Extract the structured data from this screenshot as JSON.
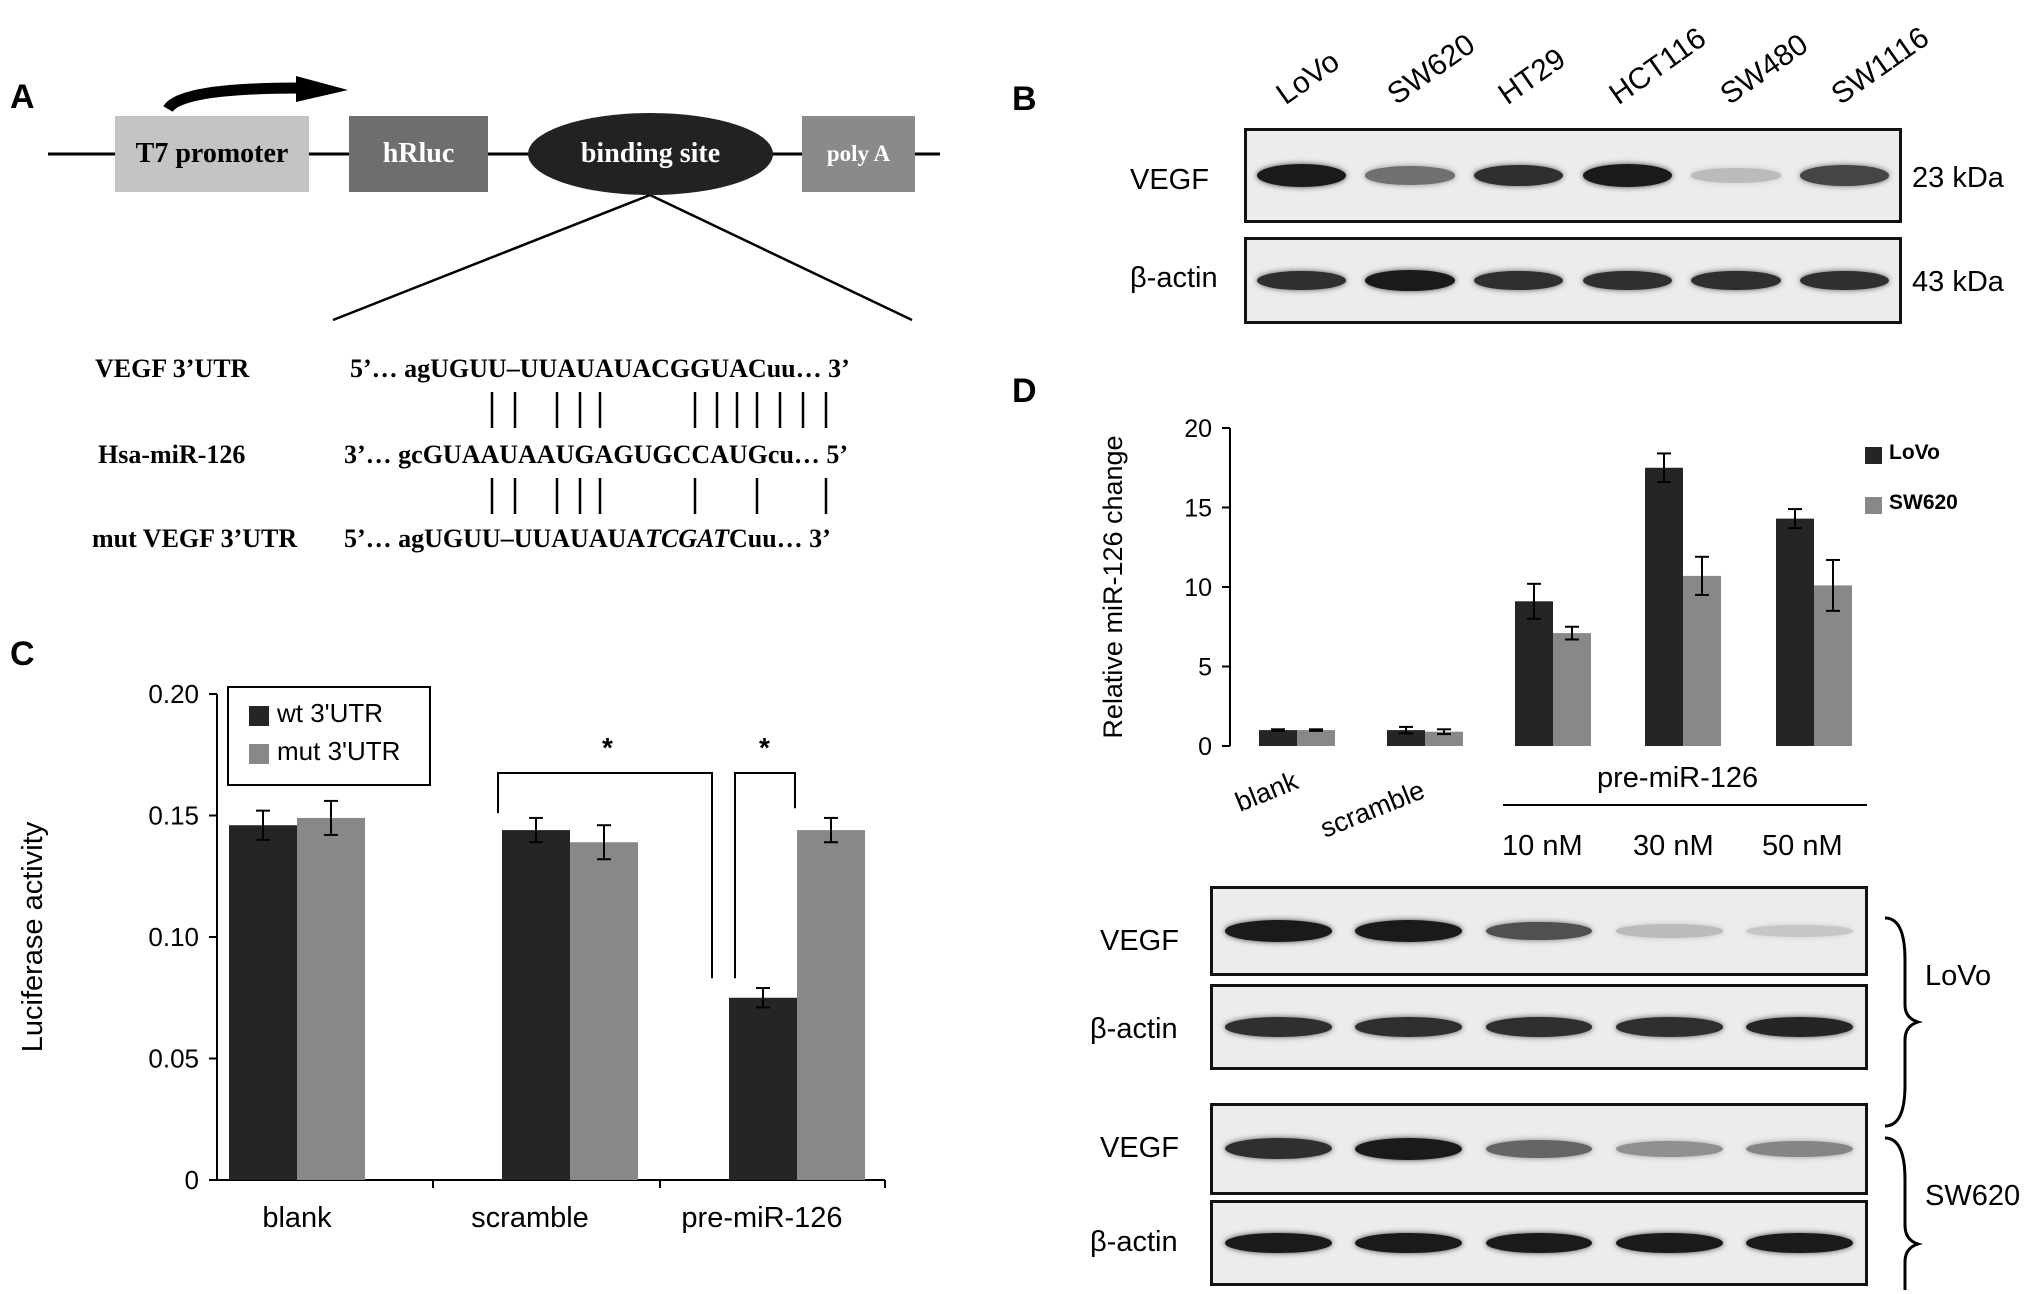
{
  "panels": {
    "A": {
      "letter": "A",
      "elements": [
        "T7 promoter",
        "hRluc",
        "binding site",
        "poly A"
      ],
      "rows": [
        {
          "name": "VEGF 3’UTR",
          "seq": "5’… agUGUU–UUAUAUACGGUACuu… 3’"
        },
        {
          "name": "Hsa-miR-126",
          "seq": "3’… gcGUAAUAAUGAGUGCCAUGcu… 5’"
        },
        {
          "name": "mut VEGF 3’UTR",
          "seq_prefix": "5’… agUGUU–UUAUAUA",
          "seq_mut": "TCGAT",
          "seq_suffix": "Cuu… 3’"
        }
      ]
    },
    "B": {
      "letter": "B",
      "lanes": [
        "LoVo",
        "SW620",
        "HT29",
        "HCT116",
        "SW480",
        "SW1116"
      ],
      "rows": [
        {
          "label": "VEGF",
          "size": "23 kDa",
          "intensity": [
            0.95,
            0.55,
            0.85,
            0.95,
            0.2,
            0.75
          ]
        },
        {
          "label": "β-actin",
          "size": "43 kDa",
          "intensity": [
            0.85,
            0.95,
            0.85,
            0.85,
            0.85,
            0.85
          ]
        }
      ]
    },
    "C": {
      "letter": "C",
      "legend": [
        "wt 3'UTR",
        "mut 3'UTR"
      ],
      "significance": [
        "*",
        "*"
      ]
    },
    "D": {
      "letter": "D",
      "legend": [
        "LoVo",
        "SW620"
      ],
      "group_label": "pre-miR-126",
      "concentrations": [
        "10 nM",
        "30 nM",
        "50 nM"
      ],
      "blots": [
        {
          "cell": "LoVo",
          "rows": [
            {
              "label": "VEGF",
              "intensity": [
                0.95,
                0.95,
                0.7,
                0.2,
                0.15
              ]
            },
            {
              "label": "β-actin",
              "intensity": [
                0.85,
                0.85,
                0.85,
                0.85,
                0.9
              ]
            }
          ]
        },
        {
          "cell": "SW620",
          "rows": [
            {
              "label": "VEGF",
              "intensity": [
                0.85,
                0.95,
                0.6,
                0.4,
                0.45
              ]
            },
            {
              "label": "β-actin",
              "intensity": [
                0.95,
                0.95,
                0.95,
                0.95,
                0.95
              ]
            }
          ]
        }
      ]
    }
  },
  "chart_data": [
    {
      "id": "C",
      "type": "bar",
      "categories": [
        "blank",
        "scramble",
        "pre-miR-126"
      ],
      "series": [
        {
          "name": "wt 3'UTR",
          "color": "#252525",
          "values": [
            0.146,
            0.144,
            0.075
          ],
          "errors": [
            0.006,
            0.005,
            0.004
          ]
        },
        {
          "name": "mut 3'UTR",
          "color": "#888888",
          "values": [
            0.149,
            0.139,
            0.144
          ],
          "errors": [
            0.007,
            0.007,
            0.005
          ]
        }
      ],
      "ylabel": "Luciferase activity",
      "ylim": [
        0,
        0.2
      ],
      "yticks": [
        "0",
        "0.05",
        "0.10",
        "0.15",
        "0.20"
      ],
      "legend_position": "top-left"
    },
    {
      "id": "D",
      "type": "bar",
      "categories": [
        "blank",
        "scramble",
        "10 nM",
        "30 nM",
        "50 nM"
      ],
      "series": [
        {
          "name": "LoVo",
          "color": "#252525",
          "values": [
            1.0,
            1.0,
            9.1,
            17.5,
            14.3
          ],
          "errors": [
            0.05,
            0.2,
            1.1,
            0.9,
            0.6
          ]
        },
        {
          "name": "SW620",
          "color": "#888888",
          "values": [
            1.0,
            0.9,
            7.1,
            10.7,
            10.1
          ],
          "errors": [
            0.05,
            0.15,
            0.4,
            1.2,
            1.6
          ]
        }
      ],
      "ylabel": "Relative miR-126 change",
      "ylim": [
        0,
        20
      ],
      "yticks": [
        "0",
        "5",
        "10",
        "15",
        "20"
      ],
      "legend_position": "top-right"
    }
  ]
}
